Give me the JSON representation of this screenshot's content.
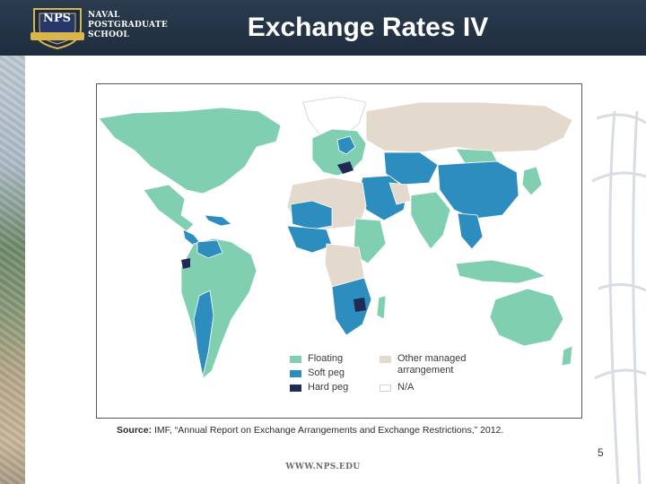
{
  "header": {
    "logo_badge": "NPS",
    "logo_lines": [
      "NAVAL",
      "POSTGRADUATE",
      "SCHOOL"
    ],
    "title": "Exchange Rates IV"
  },
  "map": {
    "legend": [
      {
        "label": "Floating",
        "color": "#7fcfb0"
      },
      {
        "label": "Soft peg",
        "color": "#2e8dbf"
      },
      {
        "label": "Hard peg",
        "color": "#1f2a55"
      },
      {
        "label": "Other managed arrangement",
        "color": "#e3d9cc"
      },
      {
        "label": "N/A",
        "color": "#ffffff"
      }
    ]
  },
  "source": {
    "prefix": "Source:",
    "text": "IMF, “Annual Report on Exchange Arrangements and Exchange Restrictions,” 2012."
  },
  "page_number": "5",
  "footer_url": "WWW.NPS.EDU"
}
